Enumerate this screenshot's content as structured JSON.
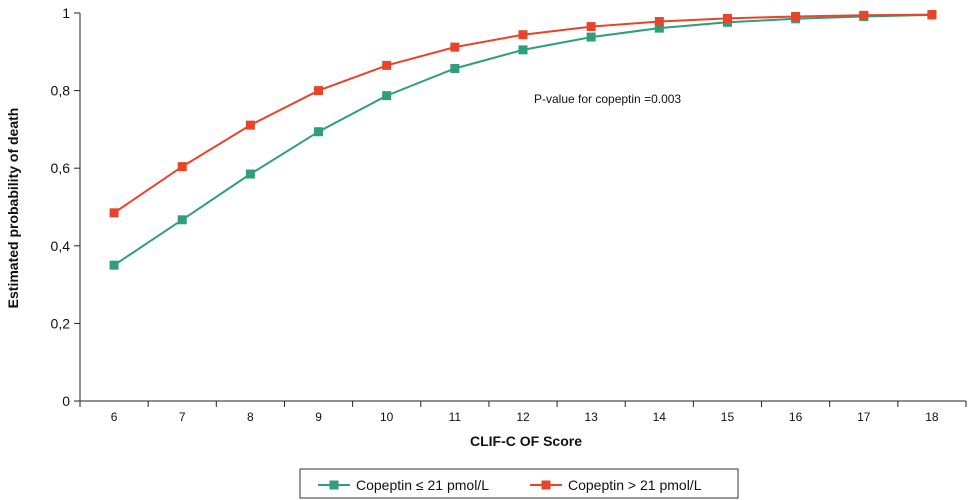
{
  "chart_data": {
    "type": "line",
    "xlabel": "CLIF-C OF Score",
    "ylabel": "Estimated probability of death",
    "x": [
      6,
      7,
      8,
      9,
      10,
      11,
      12,
      13,
      14,
      15,
      16,
      17,
      18
    ],
    "ylim": [
      0,
      1
    ],
    "yticks": [
      0,
      0.2,
      0.4,
      0.6,
      0.8,
      1
    ],
    "ytick_labels": [
      "0",
      "0,2",
      "0,4",
      "0,6",
      "0,8",
      "1"
    ],
    "grid": false,
    "legend_position": "bottom",
    "annotation": "P-value for copeptin =0.003",
    "series": [
      {
        "name": "Copeptin ≤ 21 pmol/L",
        "color": "#2e9e7d",
        "marker": "square",
        "values": [
          0.35,
          0.467,
          0.585,
          0.694,
          0.787,
          0.857,
          0.905,
          0.938,
          0.961,
          0.976,
          0.985,
          0.991,
          0.995
        ]
      },
      {
        "name": "Copeptin > 21 pmol/L",
        "color": "#e8442a",
        "marker": "square",
        "values": [
          0.485,
          0.604,
          0.711,
          0.8,
          0.865,
          0.912,
          0.944,
          0.965,
          0.978,
          0.986,
          0.991,
          0.994,
          0.996
        ]
      }
    ]
  }
}
